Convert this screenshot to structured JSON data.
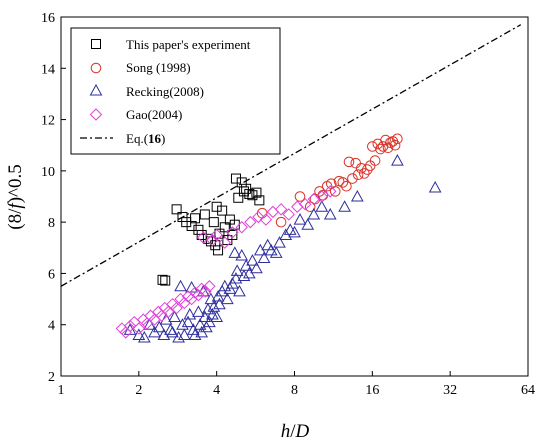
{
  "chart_data": {
    "type": "scatter",
    "xlabel_italic": "h",
    "xlabel_slash": "/",
    "xlabel_italic2": "D",
    "ylabel_pre": "(8/",
    "ylabel_italic": "f",
    "ylabel_post": ")^0.5",
    "x_scale": "log2",
    "xlim": [
      1,
      64
    ],
    "ylim": [
      2,
      16
    ],
    "x_ticks": [
      1,
      2,
      4,
      8,
      16,
      32,
      64
    ],
    "x_tick_labels": [
      "1",
      "2",
      "4",
      "8",
      "16",
      "32",
      "64"
    ],
    "y_ticks": [
      2,
      4,
      6,
      8,
      10,
      12,
      14,
      16
    ],
    "y_tick_labels": [
      "2",
      "4",
      "6",
      "8",
      "10",
      "12",
      "14",
      "16"
    ],
    "legend_position": "top-left",
    "legend": [
      {
        "label": "This paper's experiment",
        "marker": "square",
        "color": "#000000"
      },
      {
        "label": "Song (1998)",
        "marker": "circle",
        "color": "#d9342b"
      },
      {
        "label": "Recking(2008)",
        "marker": "triangle",
        "color": "#2e2e9e"
      },
      {
        "label": "Gao(2004)",
        "marker": "diamond",
        "color": "#e040d8"
      },
      {
        "label_prefix": "Eq.(",
        "label_bold": "16",
        "label_suffix": ")",
        "marker": "dashdot-line",
        "color": "#000000"
      }
    ],
    "series": [
      {
        "name": "This paper's experiment",
        "marker": "square",
        "color": "#000000",
        "points": [
          [
            2.47,
            5.75
          ],
          [
            2.53,
            5.72
          ],
          [
            2.8,
            8.5
          ],
          [
            2.95,
            8.2
          ],
          [
            3.05,
            8.0
          ],
          [
            3.2,
            7.85
          ],
          [
            3.3,
            8.15
          ],
          [
            3.4,
            7.7
          ],
          [
            3.5,
            7.5
          ],
          [
            3.6,
            8.3
          ],
          [
            3.7,
            7.35
          ],
          [
            3.8,
            7.25
          ],
          [
            3.9,
            8.0
          ],
          [
            3.95,
            7.1
          ],
          [
            4.0,
            8.6
          ],
          [
            4.05,
            6.9
          ],
          [
            4.1,
            7.55
          ],
          [
            4.2,
            8.45
          ],
          [
            4.3,
            7.8
          ],
          [
            4.4,
            7.3
          ],
          [
            4.5,
            8.1
          ],
          [
            4.6,
            7.5
          ],
          [
            4.7,
            7.9
          ],
          [
            4.75,
            9.7
          ],
          [
            4.85,
            8.95
          ],
          [
            5.0,
            9.55
          ],
          [
            5.1,
            9.2
          ],
          [
            5.2,
            9.3
          ],
          [
            5.35,
            9.1
          ],
          [
            5.5,
            9.05
          ],
          [
            5.7,
            9.15
          ],
          [
            5.85,
            8.85
          ]
        ]
      },
      {
        "name": "Song (1998)",
        "marker": "circle",
        "color": "#d9342b",
        "points": [
          [
            6.0,
            8.35
          ],
          [
            7.1,
            8.0
          ],
          [
            8.4,
            9.0
          ],
          [
            9.2,
            8.6
          ],
          [
            9.6,
            8.9
          ],
          [
            10.0,
            9.2
          ],
          [
            10.3,
            9.05
          ],
          [
            10.7,
            9.4
          ],
          [
            11.1,
            9.5
          ],
          [
            11.5,
            9.2
          ],
          [
            11.9,
            9.6
          ],
          [
            12.3,
            9.55
          ],
          [
            12.7,
            9.4
          ],
          [
            13.0,
            10.35
          ],
          [
            13.4,
            9.7
          ],
          [
            13.8,
            10.3
          ],
          [
            14.1,
            9.85
          ],
          [
            14.5,
            10.1
          ],
          [
            14.9,
            9.9
          ],
          [
            15.3,
            10.05
          ],
          [
            15.7,
            10.2
          ],
          [
            16.0,
            10.95
          ],
          [
            16.4,
            10.4
          ],
          [
            16.8,
            11.05
          ],
          [
            17.2,
            10.85
          ],
          [
            17.6,
            10.95
          ],
          [
            18.0,
            11.2
          ],
          [
            18.4,
            10.9
          ],
          [
            18.8,
            11.1
          ],
          [
            19.2,
            11.15
          ],
          [
            19.6,
            11.0
          ],
          [
            20.0,
            11.25
          ]
        ]
      },
      {
        "name": "Recking(2008)",
        "marker": "triangle",
        "color": "#2e2e9e",
        "points": [
          [
            1.85,
            3.8
          ],
          [
            2.0,
            3.6
          ],
          [
            2.1,
            3.5
          ],
          [
            2.2,
            4.0
          ],
          [
            2.3,
            3.7
          ],
          [
            2.4,
            3.9
          ],
          [
            2.5,
            3.6
          ],
          [
            2.55,
            4.2
          ],
          [
            2.65,
            3.8
          ],
          [
            2.7,
            3.7
          ],
          [
            2.75,
            4.3
          ],
          [
            2.85,
            3.5
          ],
          [
            2.9,
            5.5
          ],
          [
            2.95,
            4.0
          ],
          [
            3.0,
            3.6
          ],
          [
            3.1,
            4.1
          ],
          [
            3.15,
            4.4
          ],
          [
            3.2,
            5.45
          ],
          [
            3.25,
            3.8
          ],
          [
            3.3,
            3.6
          ],
          [
            3.4,
            4.5
          ],
          [
            3.45,
            4.0
          ],
          [
            3.5,
            3.7
          ],
          [
            3.55,
            5.3
          ],
          [
            3.6,
            4.3
          ],
          [
            3.65,
            3.9
          ],
          [
            3.7,
            4.6
          ],
          [
            3.75,
            4.1
          ],
          [
            3.8,
            5.0
          ],
          [
            3.85,
            4.4
          ],
          [
            3.9,
            4.7
          ],
          [
            4.0,
            4.3
          ],
          [
            4.05,
            5.1
          ],
          [
            4.1,
            4.8
          ],
          [
            4.2,
            5.3
          ],
          [
            4.3,
            5.5
          ],
          [
            4.4,
            5.0
          ],
          [
            4.5,
            5.4
          ],
          [
            4.6,
            5.6
          ],
          [
            4.7,
            6.8
          ],
          [
            4.75,
            5.8
          ],
          [
            4.8,
            6.1
          ],
          [
            4.9,
            5.3
          ],
          [
            5.0,
            6.7
          ],
          [
            5.1,
            5.9
          ],
          [
            5.2,
            6.3
          ],
          [
            5.35,
            6.0
          ],
          [
            5.5,
            6.5
          ],
          [
            5.7,
            6.2
          ],
          [
            5.9,
            6.9
          ],
          [
            6.1,
            6.6
          ],
          [
            6.3,
            7.1
          ],
          [
            6.5,
            6.9
          ],
          [
            6.8,
            6.8
          ],
          [
            7.0,
            7.2
          ],
          [
            7.4,
            7.5
          ],
          [
            7.7,
            7.7
          ],
          [
            8.0,
            7.6
          ],
          [
            8.4,
            8.1
          ],
          [
            9.0,
            7.9
          ],
          [
            9.5,
            8.3
          ],
          [
            10.2,
            8.6
          ],
          [
            11.0,
            8.3
          ],
          [
            12.5,
            8.6
          ],
          [
            14.0,
            9.0
          ],
          [
            20.0,
            10.4
          ],
          [
            28.0,
            9.35
          ]
        ]
      },
      {
        "name": "Gao(2004)",
        "marker": "diamond",
        "color": "#e040d8",
        "points": [
          [
            1.72,
            3.85
          ],
          [
            1.78,
            3.7
          ],
          [
            1.85,
            3.95
          ],
          [
            1.92,
            4.1
          ],
          [
            2.0,
            3.85
          ],
          [
            2.08,
            4.2
          ],
          [
            2.15,
            4.05
          ],
          [
            2.22,
            4.35
          ],
          [
            2.3,
            4.2
          ],
          [
            2.38,
            4.5
          ],
          [
            2.45,
            4.35
          ],
          [
            2.52,
            4.65
          ],
          [
            2.6,
            4.5
          ],
          [
            2.7,
            4.8
          ],
          [
            2.8,
            4.65
          ],
          [
            2.9,
            5.0
          ],
          [
            3.0,
            4.85
          ],
          [
            3.1,
            5.1
          ],
          [
            3.2,
            5.0
          ],
          [
            3.3,
            5.25
          ],
          [
            3.4,
            5.15
          ],
          [
            3.5,
            5.4
          ],
          [
            3.62,
            5.3
          ],
          [
            3.75,
            5.5
          ],
          [
            3.55,
            7.4
          ],
          [
            3.85,
            7.3
          ],
          [
            4.0,
            7.5
          ],
          [
            4.3,
            7.2
          ],
          [
            4.6,
            7.6
          ],
          [
            5.0,
            7.8
          ],
          [
            5.4,
            8.0
          ],
          [
            5.8,
            8.2
          ],
          [
            6.2,
            8.1
          ],
          [
            6.6,
            8.4
          ],
          [
            7.1,
            8.5
          ],
          [
            7.6,
            8.3
          ],
          [
            8.2,
            8.6
          ],
          [
            8.8,
            8.7
          ],
          [
            9.5,
            8.9
          ],
          [
            10.2,
            9.0
          ],
          [
            11.0,
            9.2
          ]
        ]
      },
      {
        "name": "Eq.(16)",
        "marker": "dashdot-line",
        "color": "#000000",
        "line": [
          [
            1,
            5.5
          ],
          [
            60,
            15.7
          ]
        ]
      }
    ]
  }
}
